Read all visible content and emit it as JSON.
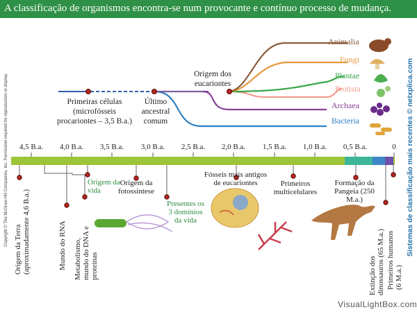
{
  "title": "A classificação de organismos encontra-se num provocante e contínuo processo de mudança.",
  "copyright": "Copyright © The McGraw-Hill Companies, Inc. Permission required for reproduction or display.",
  "sidenote": "Sistemas de classificação mais recentes © netxplica.com",
  "watermark": "VisualLightBox.com",
  "branches": [
    {
      "label": "Animalia",
      "color": "#8a5a3a"
    },
    {
      "label": "Fungi",
      "color": "#e49a3c"
    },
    {
      "label": "Plantae",
      "color": "#3aa64b"
    },
    {
      "label": "Protista",
      "color": "#f29a8c"
    },
    {
      "label": "Archaea",
      "color": "#8a3f9a"
    },
    {
      "label": "Bacteria",
      "color": "#2e7fc1"
    }
  ],
  "tree_labels": {
    "first_cells": [
      "Primeiras células",
      "(microfósseis",
      "procariontes – 3,5 B.a.)"
    ],
    "last_common": [
      "Último",
      "ancestral",
      "comum"
    ],
    "eukaryote_origin": [
      "Origem dos",
      "eucariontes"
    ]
  },
  "axis_ticks": [
    "4,5 B.a.",
    "4,0 B.a.",
    "3,5 B.a.",
    "3,0 B.a.",
    "2,5 B.a.",
    "2,0 B.a.",
    "1,5 B.a.",
    "1,0 B.a.",
    "0,5 B.a.",
    "0"
  ],
  "events": {
    "earth": [
      "Origem da Terra",
      "(aproximadamente 4,6 B.a.)"
    ],
    "rna": "Mundo do RNA",
    "metab": [
      "Metabolismo,",
      "mundo do DNA e",
      "proteínas"
    ],
    "life": [
      "Origem da",
      "vida"
    ],
    "photo": [
      "Origem da",
      "fotossíntese"
    ],
    "domains": [
      "Presentes os",
      "3 domínios",
      "da vida"
    ],
    "fossils": [
      "Fósseis mais antigos",
      "de eucariontes"
    ],
    "multi": [
      "Primeiros",
      "multicelulares"
    ],
    "pangea": [
      "Formação da",
      "Pangeia (250",
      "M.a.)"
    ],
    "dinos": [
      "Extinção dos",
      "dinossauros (65 M.a.)"
    ],
    "humans": [
      "Primeiros humanos",
      "(6 M.a.)"
    ]
  }
}
